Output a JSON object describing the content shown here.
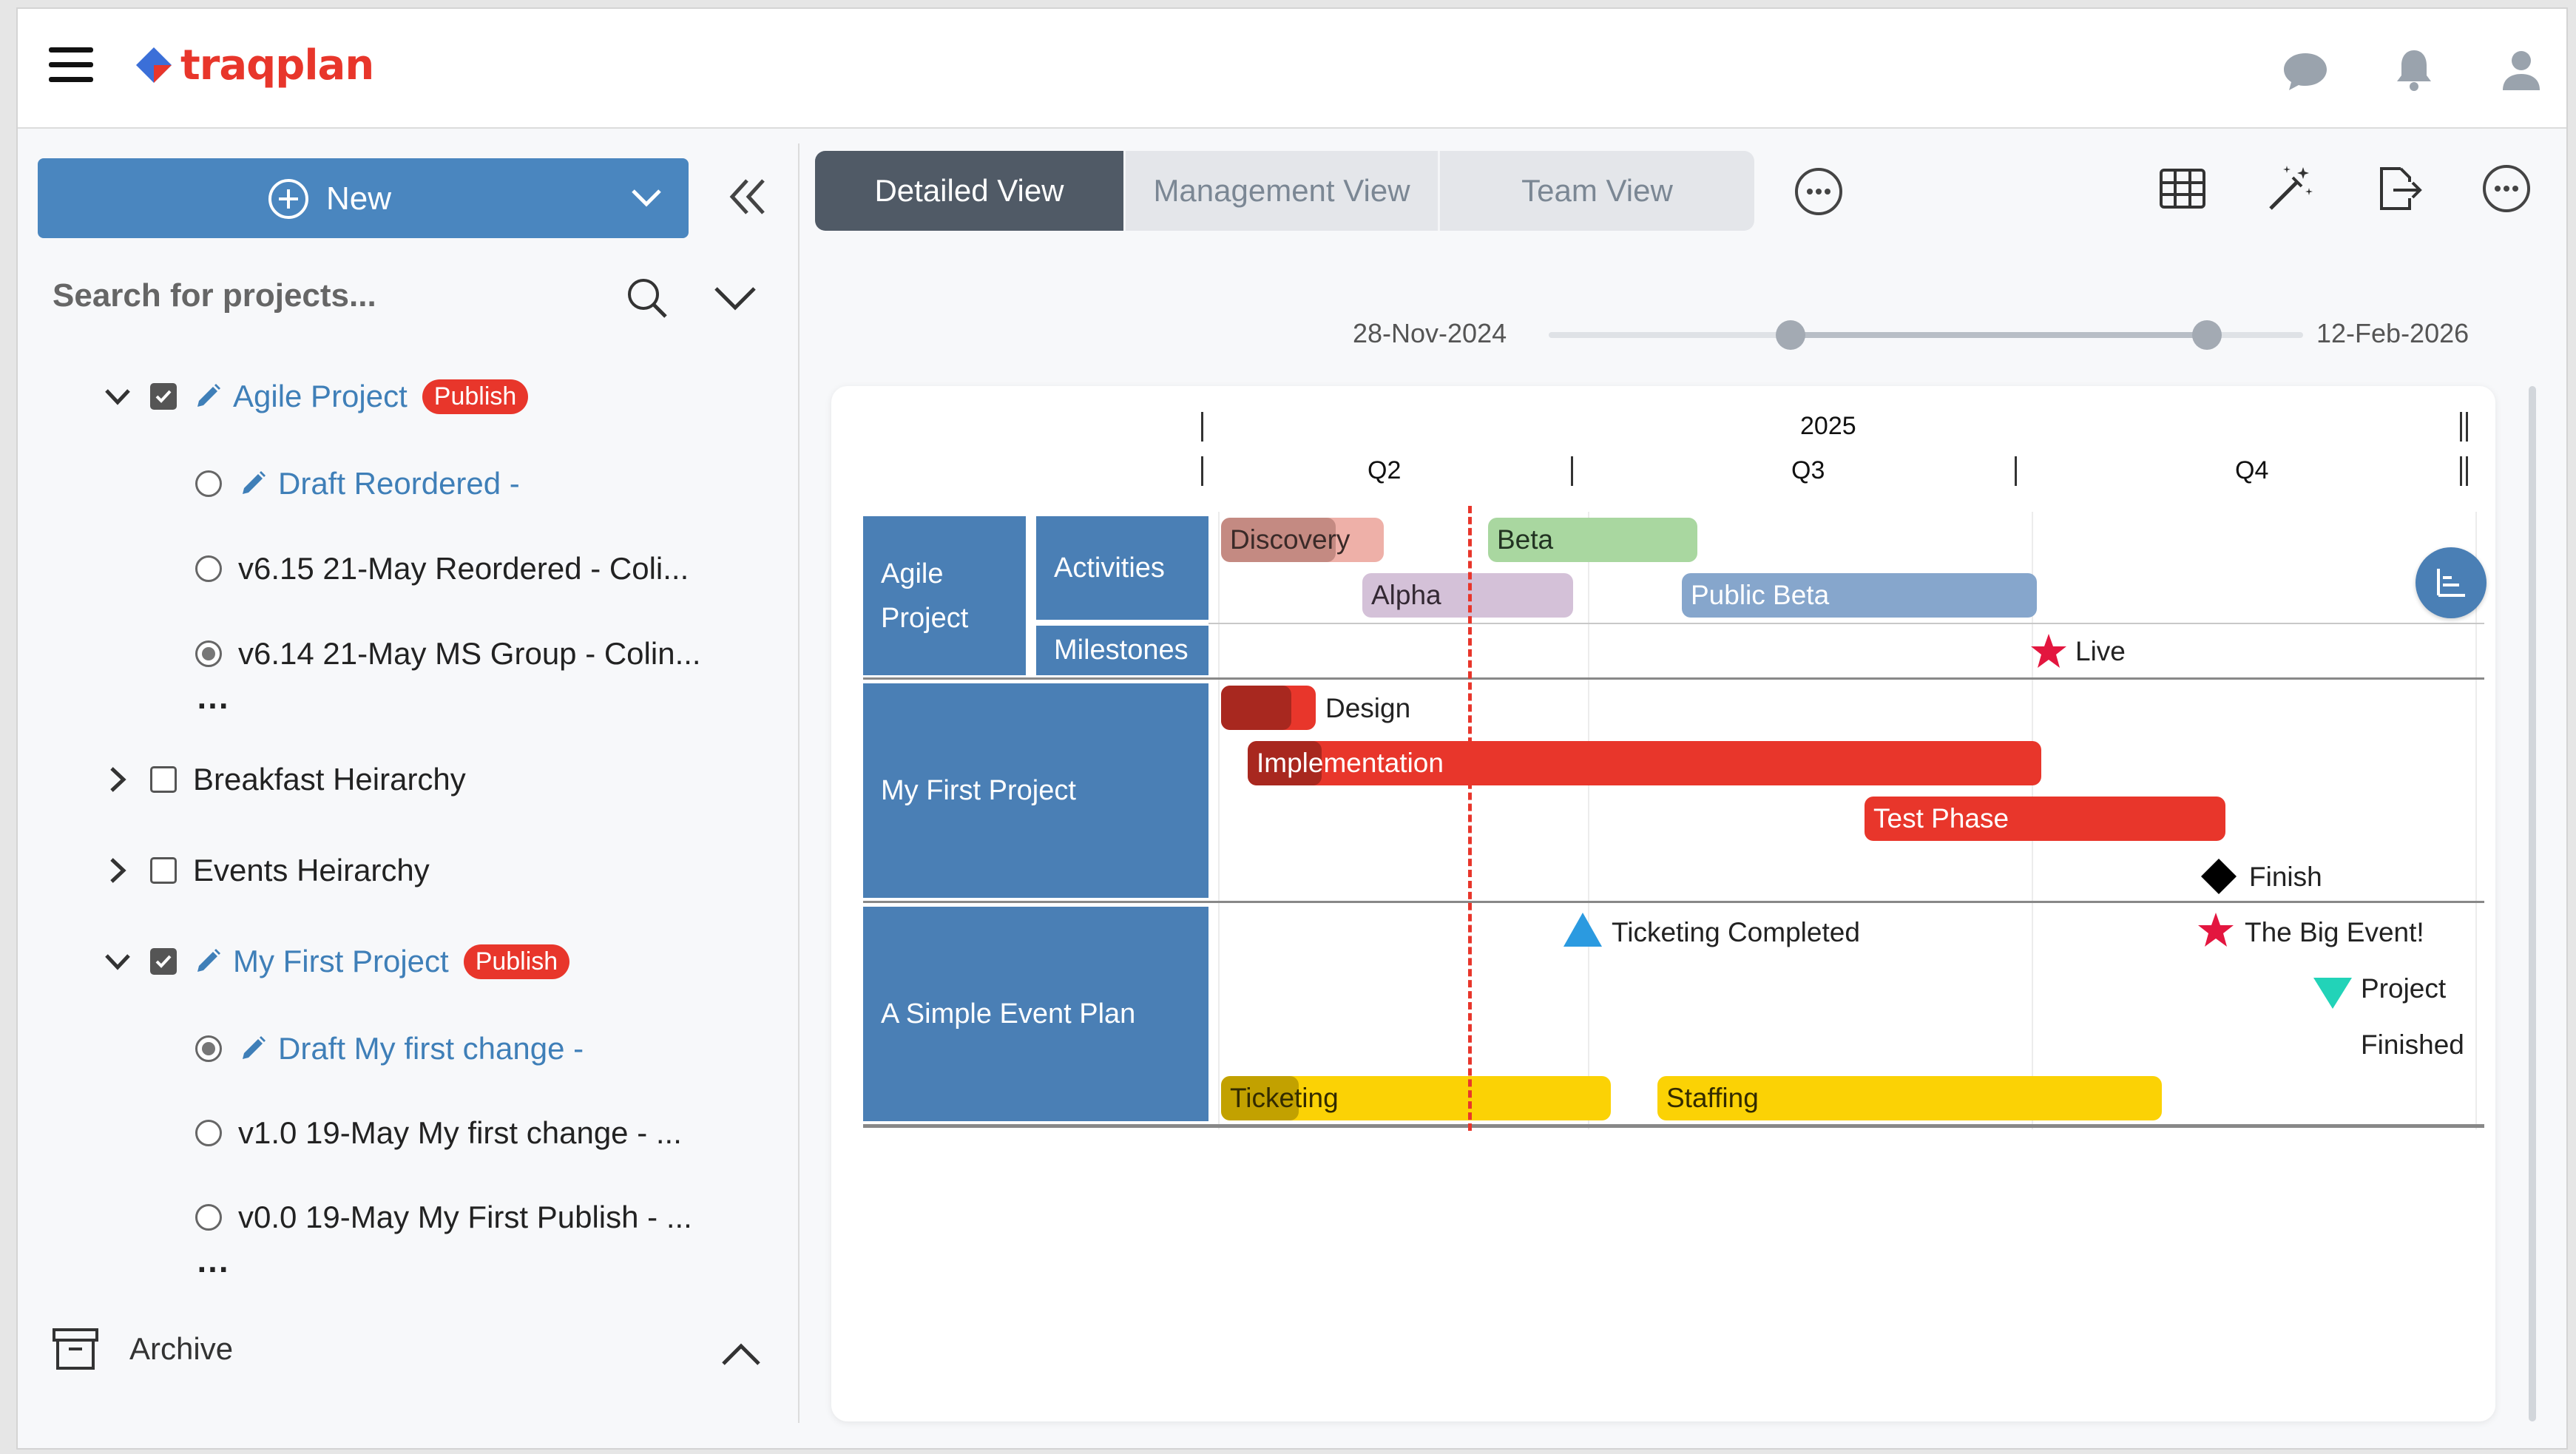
{
  "app": {
    "name": "traqplan"
  },
  "sidebar": {
    "new_label": "New",
    "search_placeholder": "Search for projects...",
    "tree": [
      {
        "label": "Agile Project",
        "badge": "Publish"
      },
      {
        "label": "Draft Reordered -"
      },
      {
        "label": "v6.15 21-May Reordered - Coli..."
      },
      {
        "label": "v6.14 21-May MS Group - Colin..."
      },
      {
        "label": "Breakfast Heirarchy"
      },
      {
        "label": "Events Heirarchy"
      },
      {
        "label": "My First Project",
        "badge": "Publish"
      },
      {
        "label": "Draft My first change -"
      },
      {
        "label": "v1.0 19-May My first change - ..."
      },
      {
        "label": "v0.0 19-May My First Publish - ..."
      }
    ],
    "more_dots": "...",
    "archive_label": "Archive"
  },
  "tabs": [
    "Detailed View",
    "Management View",
    "Team View"
  ],
  "timeline": {
    "start": "28-Nov-2024",
    "end": "12-Feb-2026"
  },
  "gantt": {
    "year": "2025",
    "quarters": [
      "Q2",
      "Q3",
      "Q4"
    ],
    "swimlanes": {
      "agile": "Agile Project",
      "activities": "Activities",
      "milestones": "Milestones",
      "first": "My First Project",
      "event": "A Simple Event Plan"
    },
    "bars": {
      "discovery": "Discovery",
      "beta": "Beta",
      "alpha": "Alpha",
      "public_beta": "Public Beta",
      "implementation": "Implementation",
      "test_phase": "Test Phase",
      "ticketing": "Ticketing",
      "staffing": "Staffing"
    },
    "milestones": {
      "live": "Live",
      "design": "Design",
      "finish": "Finish",
      "ticketing_completed": "Ticketing Completed",
      "big_event": "The Big Event!",
      "project_finished_1": "Project",
      "project_finished_2": "Finished"
    }
  },
  "colors": {
    "accent": "#4a86bf",
    "swimlane": "#4a7fb5",
    "publish": "#e8362b",
    "today_line": "#e8362b"
  }
}
